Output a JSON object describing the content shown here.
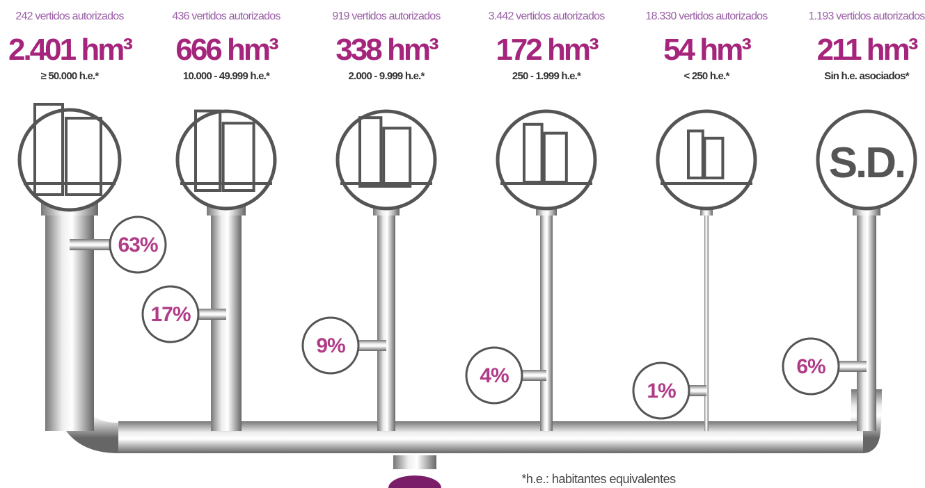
{
  "columns": [
    {
      "count": "242 vertidos autorizados",
      "volume": "2.401 hm³",
      "range": "≥ 50.000 h.e.*",
      "percent": "63%"
    },
    {
      "count": "436 vertidos autorizados",
      "volume": "666 hm³",
      "range": "10.000 - 49.999 h.e.*",
      "percent": "17%"
    },
    {
      "count": "919 vertidos autorizados",
      "volume": "338 hm³",
      "range": "2.000 - 9.999 h.e.*",
      "percent": "9%"
    },
    {
      "count": "3.442 vertidos autorizados",
      "volume": "172 hm³",
      "range": "250 - 1.999 h.e.*",
      "percent": "4%"
    },
    {
      "count": "18.330 vertidos autorizados",
      "volume": "54 hm³",
      "range": "< 250 h.e.*",
      "percent": "1%"
    },
    {
      "count": "1.193 vertidos autorizados",
      "volume": "211 hm³",
      "range": "Sin h.e. asociados*",
      "percent": "6%",
      "icon_text": "S.D."
    }
  ],
  "footnote": "*h.e.: habitantes equivalentes"
}
